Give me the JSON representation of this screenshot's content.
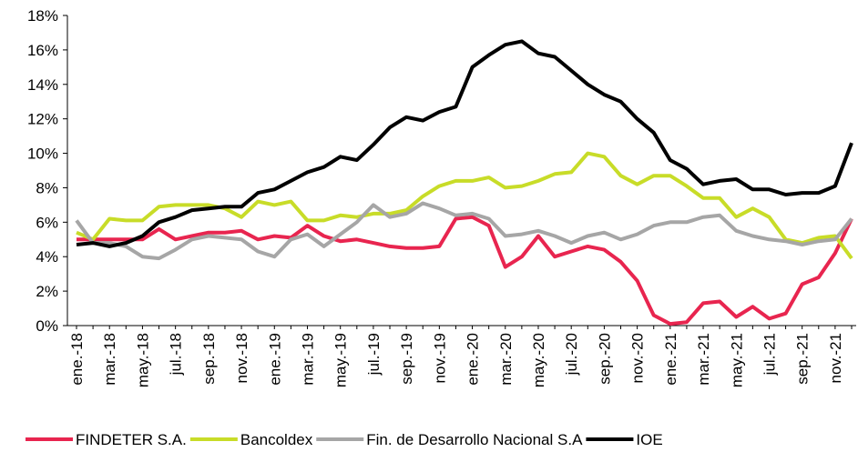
{
  "chart_data": {
    "type": "line",
    "categories": [
      "ene.-18",
      null,
      "mar.-18",
      null,
      "may.-18",
      null,
      "jul.-18",
      null,
      "sep.-18",
      null,
      "nov.-18",
      null,
      "ene.-19",
      null,
      "mar.-19",
      null,
      "may.-19",
      null,
      "jul.-19",
      null,
      "sep.-19",
      null,
      "nov.-19",
      null,
      "ene.-20",
      null,
      "mar.-20",
      null,
      "may.-20",
      null,
      "jul.-20",
      null,
      "sep.-20",
      null,
      "nov.-20",
      null,
      "ene.-21",
      null,
      "mar.-21",
      null,
      "may.-21",
      null,
      "jul.-21",
      null,
      "sep.-21",
      null,
      "nov.-21",
      null
    ],
    "series": [
      {
        "name": "FINDETER S.A.",
        "color": "#e8254f",
        "values": [
          5.0,
          5.0,
          5.0,
          5.0,
          5.0,
          5.6,
          5.0,
          5.2,
          5.4,
          5.4,
          5.5,
          5.0,
          5.2,
          5.1,
          5.8,
          5.2,
          4.9,
          5.0,
          4.8,
          4.6,
          4.5,
          4.5,
          4.6,
          6.2,
          6.3,
          5.8,
          3.4,
          4.0,
          5.2,
          4.0,
          4.3,
          4.6,
          4.4,
          3.7,
          2.6,
          0.6,
          0.1,
          0.2,
          1.3,
          1.4,
          0.5,
          1.1,
          0.4,
          0.7,
          2.4,
          2.8,
          4.2,
          6.2
        ]
      },
      {
        "name": "Bancoldex",
        "color": "#c8dc28",
        "values": [
          5.4,
          5.0,
          6.2,
          6.1,
          6.1,
          6.9,
          7.0,
          7.0,
          7.0,
          6.8,
          6.3,
          7.2,
          7.0,
          7.2,
          6.1,
          6.1,
          6.4,
          6.3,
          6.5,
          6.5,
          6.7,
          7.5,
          8.1,
          8.4,
          8.4,
          8.6,
          8.0,
          8.1,
          8.4,
          8.8,
          8.9,
          10.0,
          9.8,
          8.7,
          8.2,
          8.7,
          8.7,
          8.1,
          7.4,
          7.4,
          6.3,
          6.8,
          6.3,
          5.0,
          4.8,
          5.1,
          5.2,
          3.9
        ]
      },
      {
        "name": "Fin. de Desarrollo Nacional S.A",
        "color": "#a6a6a6",
        "values": [
          6.1,
          4.8,
          4.8,
          4.6,
          4.0,
          3.9,
          4.4,
          5.0,
          5.2,
          5.1,
          5.0,
          4.3,
          4.0,
          5.0,
          5.3,
          4.6,
          5.3,
          6.0,
          7.0,
          6.3,
          6.5,
          7.1,
          6.8,
          6.4,
          6.5,
          6.2,
          5.2,
          5.3,
          5.5,
          5.2,
          4.8,
          5.2,
          5.4,
          5.0,
          5.3,
          5.8,
          6.0,
          6.0,
          6.3,
          6.4,
          5.5,
          5.2,
          5.0,
          4.9,
          4.7,
          4.9,
          5.0,
          6.2
        ]
      },
      {
        "name": "IOE",
        "color": "#000000",
        "values": [
          4.7,
          4.8,
          4.6,
          4.8,
          5.2,
          6.0,
          6.3,
          6.7,
          6.8,
          6.9,
          6.9,
          7.7,
          7.9,
          8.4,
          8.9,
          9.2,
          9.8,
          9.6,
          10.5,
          11.5,
          12.1,
          11.9,
          12.4,
          12.7,
          15.0,
          15.7,
          16.3,
          16.5,
          15.8,
          15.6,
          14.8,
          14.0,
          13.4,
          13.0,
          12.0,
          11.2,
          9.6,
          9.1,
          8.2,
          8.4,
          8.5,
          7.9,
          7.9,
          7.6,
          7.7,
          7.7,
          8.1,
          10.6
        ]
      }
    ],
    "ylim": [
      0,
      18
    ],
    "yticks": [
      {
        "value": 0,
        "label": "0%"
      },
      {
        "value": 2,
        "label": "2%"
      },
      {
        "value": 4,
        "label": "4%"
      },
      {
        "value": 6,
        "label": "6%"
      },
      {
        "value": 8,
        "label": "8%"
      },
      {
        "value": 10,
        "label": "10%"
      },
      {
        "value": 12,
        "label": "12%"
      },
      {
        "value": 14,
        "label": "14%"
      },
      {
        "value": 16,
        "label": "16%"
      },
      {
        "value": 18,
        "label": "18%"
      }
    ],
    "grid": false,
    "legend": "bottom"
  }
}
